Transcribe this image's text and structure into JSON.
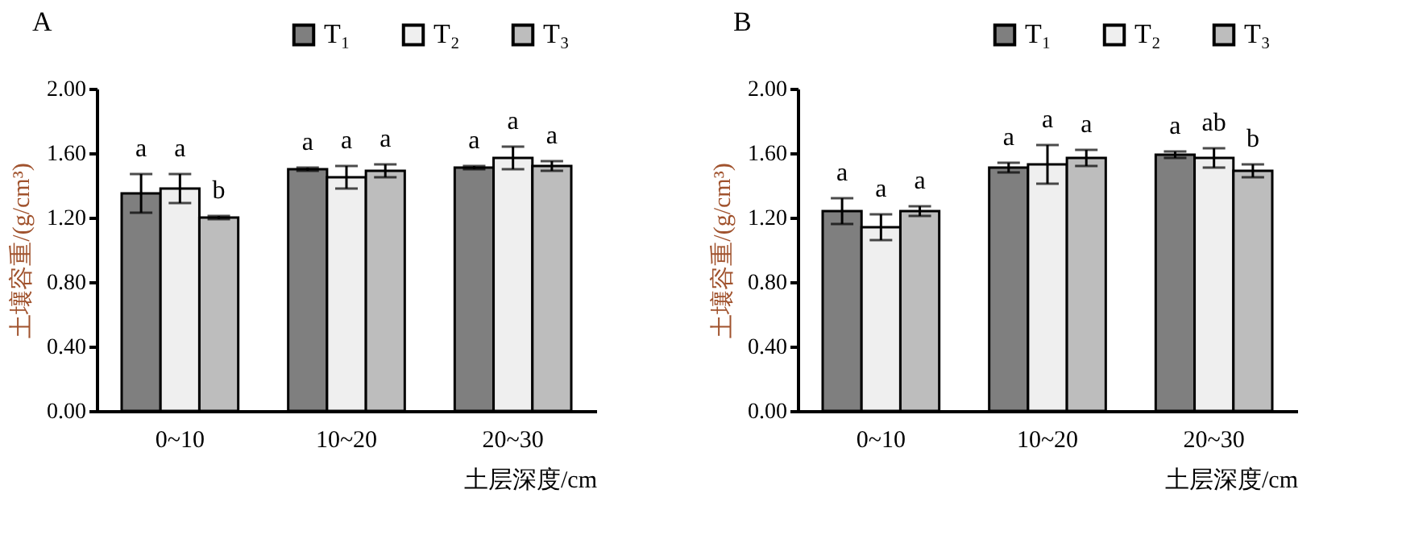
{
  "chart_data": [
    {
      "type": "bar",
      "title": "A",
      "xlabel": "土层深度/cm",
      "ylabel": "土壤容重/(g/cm³)",
      "categories": [
        "0~10",
        "10~20",
        "20~30"
      ],
      "series": [
        {
          "name": "T₁",
          "color": "#7f7f7f",
          "values": [
            1.35,
            1.5,
            1.51
          ],
          "errors": [
            0.12,
            0.01,
            0.01
          ],
          "value_labels": [
            "a",
            "a",
            "a"
          ]
        },
        {
          "name": "T₂",
          "color": "#efefef",
          "values": [
            1.38,
            1.45,
            1.57
          ],
          "errors": [
            0.09,
            0.07,
            0.07
          ],
          "value_labels": [
            "a",
            "a",
            "a"
          ]
        },
        {
          "name": "T₃",
          "color": "#bdbdbd",
          "values": [
            1.2,
            1.49,
            1.52
          ],
          "errors": [
            0.01,
            0.04,
            0.03
          ],
          "value_labels": [
            "b",
            "a",
            "a"
          ]
        }
      ],
      "ylim": [
        0,
        2
      ],
      "yticks": [
        {
          "value": 0,
          "label": "0.00"
        },
        {
          "value": 0.4,
          "label": "0.40"
        },
        {
          "value": 0.8,
          "label": "0.80"
        },
        {
          "value": 1.2,
          "label": "1.20"
        },
        {
          "value": 1.6,
          "label": "1.60"
        },
        {
          "value": 2,
          "label": "2.00"
        }
      ],
      "legend": "top right"
    },
    {
      "type": "bar",
      "title": "B",
      "xlabel": "土层深度/cm",
      "ylabel": "土壤容重/(g/cm³)",
      "categories": [
        "0~10",
        "10~20",
        "20~30"
      ],
      "series": [
        {
          "name": "T₁",
          "color": "#7f7f7f",
          "values": [
            1.24,
            1.51,
            1.59
          ],
          "errors": [
            0.08,
            0.03,
            0.02
          ],
          "value_labels": [
            "a",
            "a",
            "a"
          ]
        },
        {
          "name": "T₂",
          "color": "#efefef",
          "values": [
            1.14,
            1.53,
            1.57
          ],
          "errors": [
            0.08,
            0.12,
            0.06
          ],
          "value_labels": [
            "a",
            "a",
            "ab"
          ]
        },
        {
          "name": "T₃",
          "color": "#bdbdbd",
          "values": [
            1.24,
            1.57,
            1.49
          ],
          "errors": [
            0.03,
            0.05,
            0.04
          ],
          "value_labels": [
            "a",
            "a",
            "b"
          ]
        }
      ],
      "ylim": [
        0,
        2
      ],
      "yticks": [
        {
          "value": 0,
          "label": "0.00"
        },
        {
          "value": 0.4,
          "label": "0.40"
        },
        {
          "value": 0.8,
          "label": "0.80"
        },
        {
          "value": 1.2,
          "label": "1.20"
        },
        {
          "value": 1.6,
          "label": "1.60"
        },
        {
          "value": 2,
          "label": "2.00"
        }
      ],
      "legend": "top right"
    }
  ]
}
